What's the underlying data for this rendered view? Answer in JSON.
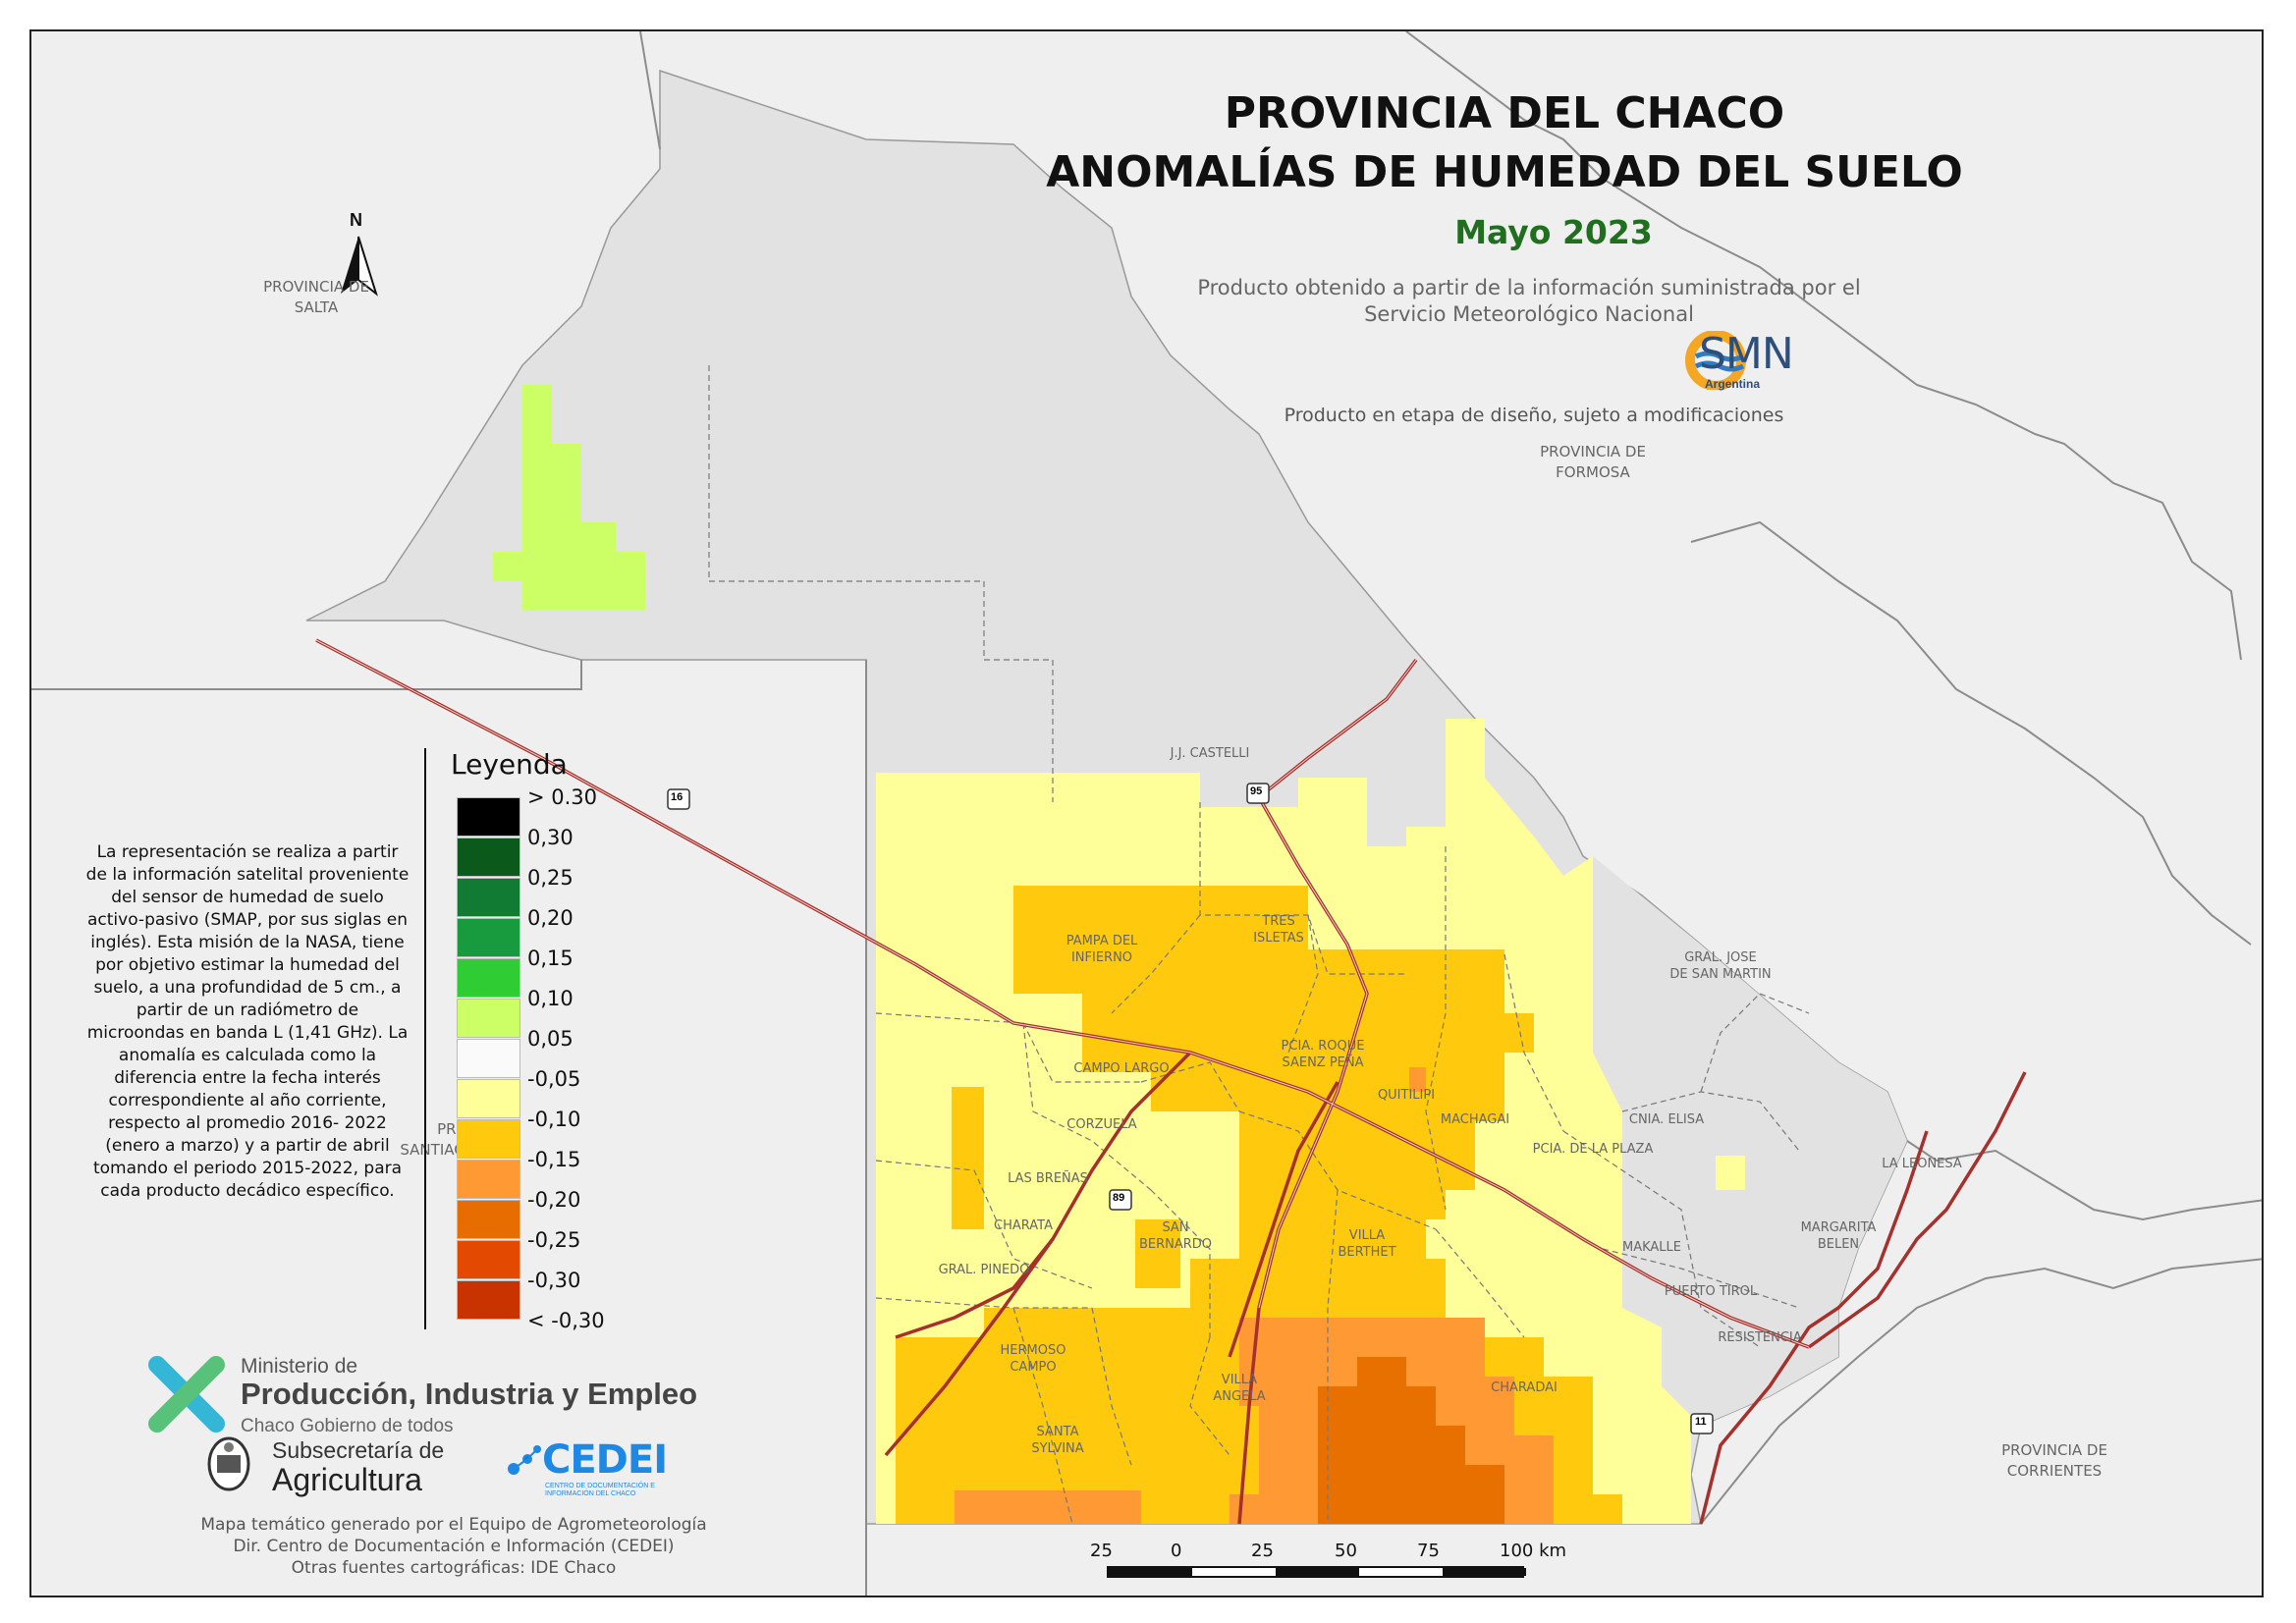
{
  "header": {
    "title_line1": "PROVINCIA DEL CHACO",
    "title_line2": "ANOMALÍAS DE HUMEDAD DEL SUELO",
    "period": "Mayo 2023",
    "source_line1": "Producto obtenido a partir de la información suministrada por el",
    "source_line2": "Servicio Meteorológico Nacional",
    "smn_logo_text": "SMN",
    "smn_logo_sub": "Argentina",
    "design_note": "Producto en etapa de diseño, sujeto a modificaciones"
  },
  "north_arrow": {
    "label": "N",
    "icon": "north-arrow-icon"
  },
  "provinces": [
    {
      "line1": "PROVINCIA DE",
      "line2": "SALTA"
    },
    {
      "line1": "PROVINCIA DE",
      "line2": "FORMOSA"
    },
    {
      "line1": "PROVINCIA DE",
      "line2": "CORRIENTES"
    },
    {
      "line1": "PROVIN",
      "line2": "SANTIAGO D"
    }
  ],
  "cities": [
    {
      "line1": "J.J. CASTELLI",
      "line2": ""
    },
    {
      "line1": "TRES",
      "line2": "ISLETAS"
    },
    {
      "line1": "PAMPA DEL",
      "line2": "INFIERNO"
    },
    {
      "line1": "GRAL. JOSE",
      "line2": "DE SAN MARTIN"
    },
    {
      "line1": "PCIA. ROQUE",
      "line2": "SAENZ PEÑA"
    },
    {
      "line1": "CAMPO LARGO",
      "line2": ""
    },
    {
      "line1": "QUITILIPI",
      "line2": ""
    },
    {
      "line1": "CNIA. ELISA",
      "line2": ""
    },
    {
      "line1": "MACHAGAI",
      "line2": ""
    },
    {
      "line1": "CORZUELA",
      "line2": ""
    },
    {
      "line1": "PCIA. DE LA PLAZA",
      "line2": ""
    },
    {
      "line1": "LA LEONESA",
      "line2": ""
    },
    {
      "line1": "LAS BREÑAS",
      "line2": ""
    },
    {
      "line1": "CHARATA",
      "line2": ""
    },
    {
      "line1": "SAN",
      "line2": "BERNARDO"
    },
    {
      "line1": "VILLA",
      "line2": "BERTHET"
    },
    {
      "line1": "MAKALLE",
      "line2": ""
    },
    {
      "line1": "MARGARITA",
      "line2": "BELEN"
    },
    {
      "line1": "GRAL. PINEDO",
      "line2": ""
    },
    {
      "line1": "PUERTO TIROL",
      "line2": ""
    },
    {
      "line1": "RESISTENCIA",
      "line2": ""
    },
    {
      "line1": "HERMOSO",
      "line2": "CAMPO"
    },
    {
      "line1": "VILLA",
      "line2": "ANGELA"
    },
    {
      "line1": "CHARADAI",
      "line2": ""
    },
    {
      "line1": "SANTA",
      "line2": "SYLVINA"
    }
  ],
  "routes": [
    "16",
    "95",
    "89",
    "11"
  ],
  "legend": {
    "title": "Leyenda",
    "classes": [
      {
        "label": "> 0.30",
        "color": "#000000"
      },
      {
        "label": "0,30",
        "color": "#0b5a1c"
      },
      {
        "label": "0,25",
        "color": "#117a33"
      },
      {
        "label": "0,20",
        "color": "#179b3e"
      },
      {
        "label": "0,15",
        "color": "#2fcc33"
      },
      {
        "label": "0,10",
        "color": "#ccff66"
      },
      {
        "label": "0,05",
        "color": "#fafafa"
      },
      {
        "label": "-0,05",
        "color": "#ffff99"
      },
      {
        "label": "-0,10",
        "color": "#ffc90e"
      },
      {
        "label": "-0,15",
        "color": "#ff9933"
      },
      {
        "label": "-0,20",
        "color": "#e86d00"
      },
      {
        "label": "-0,25",
        "color": "#e34a00"
      },
      {
        "label": "-0,30",
        "color": "#c93300"
      },
      {
        "label": "< -0,30",
        "color": ""
      }
    ]
  },
  "explanation": "La representación se realiza a partir de la información satelital proveniente del sensor de humedad de suelo activo-pasivo (SMAP, por sus siglas en inglés). Esta misión de la NASA, tiene por objetivo estimar la humedad del suelo, a una profundidad de 5 cm., a partir de un radiómetro de microondas en banda L (1,41 GHz). La anomalía es calculada como la diferencia entre la fecha interés correspondiente al año corriente, respecto al promedio 2016- 2022 (enero a marzo) y a partir de abril tomando el periodo 2015-2022, para cada producto decádico específico.",
  "scale": {
    "labels": [
      "25",
      "0",
      "25",
      "50",
      "75",
      "100 km"
    ]
  },
  "logos": {
    "ministry_line1": "Ministerio de",
    "ministry_line2": "Producción, Industria y Empleo",
    "ministry_line3": "Chaco Gobierno de todos",
    "subsec_line1": "Subsecretaría de",
    "subsec_line2": "Agricultura",
    "cedei": "CEDEI",
    "cedei_sub": "CENTRO DE DOCUMENTACIÓN E INFORMACIÓN DEL CHACO"
  },
  "credits": {
    "line1": "Mapa temático generado por el Equipo de Agrometeorología",
    "line2": "Dir. Centro de Documentación e Información (CEDEI)",
    "line3": "Otras fuentes cartográficas: IDE Chaco"
  },
  "colors": {
    "background": "#efefef",
    "no_data": "#e2e2e2",
    "border": "#8c8c8c",
    "route": "#a5302c",
    "title_green": "#1f6f1f"
  }
}
